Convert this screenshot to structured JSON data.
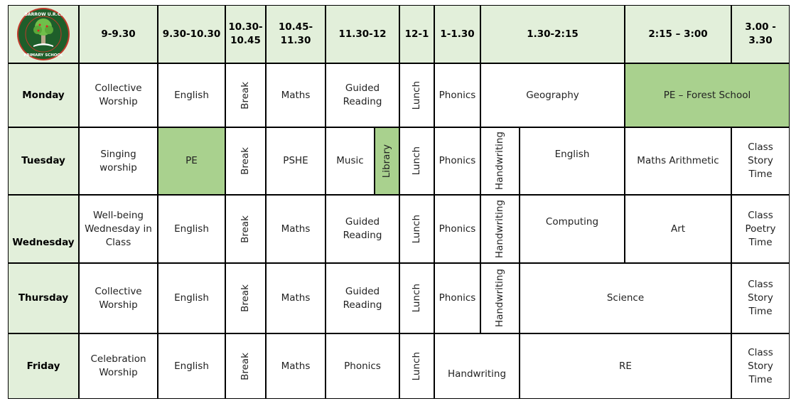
{
  "logo": {
    "text_top": "BARROW U.R.C.",
    "text_bottom": "PRIMARY SCHOOL"
  },
  "colors": {
    "header_bg": "#e2efda",
    "highlight": "#a9d18e",
    "logo_green": "#1e5e2a",
    "logo_red": "#c0392b"
  },
  "headers": [
    "9-9.30",
    "9.30-10.30",
    "10.30-10.45",
    "10.45-11.30",
    "11.30-12",
    "12-1",
    "1-1.30",
    "1.30-2:15",
    "2:15 – 3:00",
    "3.00 - 3.30"
  ],
  "days": [
    "Monday",
    "Tuesday",
    "Wednesday",
    "Thursday",
    "Friday"
  ],
  "monday": [
    "Collective Worship",
    "English",
    "Break",
    "Maths",
    "Guided Reading",
    "Lunch",
    "Phonics",
    "Geography",
    "PE – Forest School"
  ],
  "tuesday": [
    "Singing worship",
    "PE",
    "Break",
    "PSHE",
    "Music",
    "Library",
    "Lunch",
    "Phonics",
    "Handwriting",
    "English",
    "Maths Arithmetic",
    "Class Story Time"
  ],
  "wednesday": [
    "Well-being Wednesday in Class",
    "English",
    "Break",
    "Maths",
    "Guided Reading",
    "Lunch",
    "Phonics",
    "Handwriting",
    "Computing",
    "Art",
    "Class Poetry Time"
  ],
  "thursday": [
    "Collective Worship",
    "English",
    "Break",
    "Maths",
    "Guided Reading",
    "Lunch",
    "Phonics",
    "Handwriting",
    "Science",
    "Class Story Time"
  ],
  "friday": [
    "Celebration Worship",
    "English",
    "Break",
    "Maths",
    "Phonics",
    "Lunch",
    "Handwriting",
    "RE",
    "Class Story Time"
  ]
}
